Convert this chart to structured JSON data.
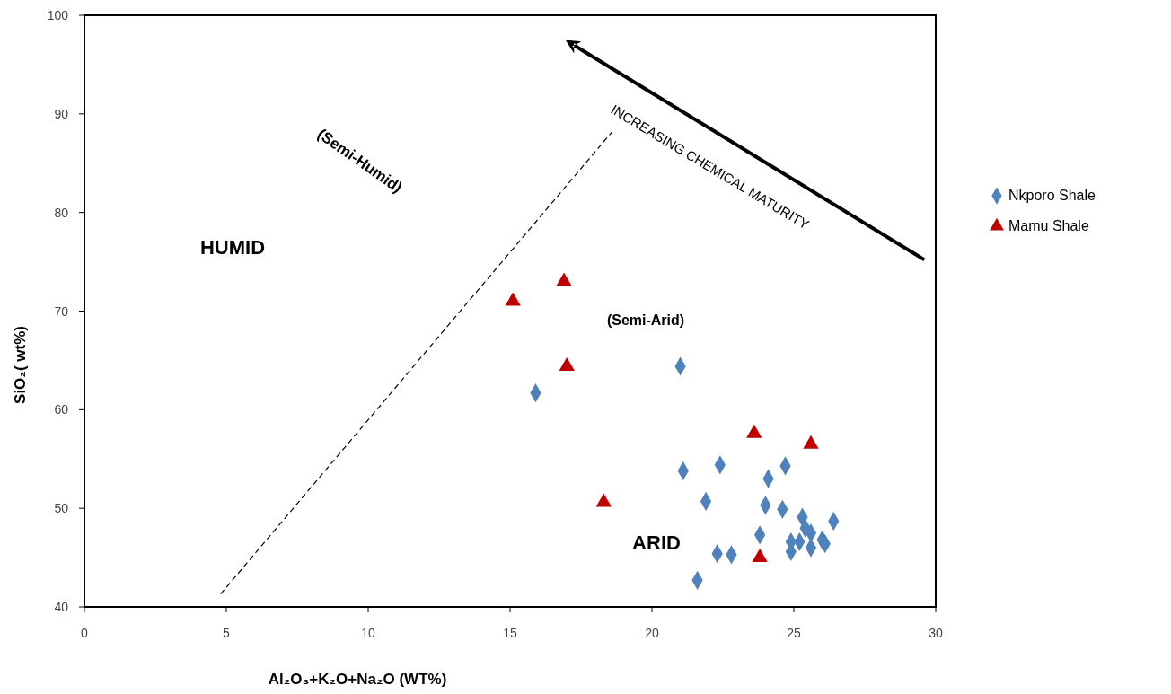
{
  "chart_data": {
    "type": "scatter",
    "xlabel": "Al₂O₃+K₂O+Na₂O (WT%)",
    "ylabel": "SiO₂( wt%)",
    "xlim": [
      0,
      30
    ],
    "xticks": [
      0,
      5,
      10,
      15,
      20,
      25,
      30
    ],
    "ylim": [
      40,
      100
    ],
    "yticks": [
      40,
      50,
      60,
      70,
      80,
      90,
      100
    ],
    "grid": false,
    "legend": "right",
    "series": [
      {
        "name": "Nkporo Shale",
        "color": "#4f81bd",
        "marker": "diamond",
        "x": [
          21.0,
          15.9,
          21.1,
          22.4,
          24.7,
          24.1,
          21.9,
          24.0,
          24.6,
          25.3,
          26.4,
          25.4,
          25.6,
          23.8,
          24.9,
          25.2,
          26.0,
          26.1,
          24.9,
          25.6,
          22.3,
          22.8,
          21.6
        ],
        "values": [
          64.4,
          61.7,
          53.8,
          54.4,
          54.3,
          53.0,
          50.7,
          50.3,
          49.9,
          49.1,
          48.7,
          48.0,
          47.5,
          47.3,
          46.6,
          46.6,
          46.8,
          46.4,
          45.6,
          46.0,
          45.4,
          45.3,
          42.7
        ]
      },
      {
        "name": "Mamu Shale",
        "color": "#c00000",
        "marker": "triangle",
        "x": [
          16.9,
          15.1,
          17.0,
          23.6,
          25.6,
          18.3,
          23.8
        ],
        "values": [
          73.0,
          71.0,
          64.4,
          57.6,
          56.5,
          50.6,
          45.0
        ]
      },
      {
        "type": "line",
        "color": "#000000",
        "marker": "none",
        "line_style": "dashed",
        "x": [
          4.8,
          18.6
        ],
        "values": [
          41.3,
          88.2
        ]
      }
    ],
    "annotations": [
      "HUMID",
      "(Semi-Humid)",
      "(Semi-Arid)",
      "ARID",
      "INCREASING CHEMICAL MATURITY"
    ]
  }
}
